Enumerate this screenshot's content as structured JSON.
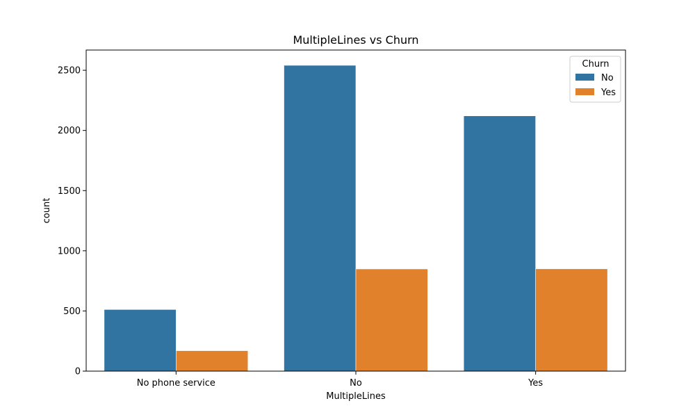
{
  "chart_data": {
    "type": "bar",
    "title": "MultipleLines vs Churn",
    "xlabel": "MultipleLines",
    "ylabel": "count",
    "categories": [
      "No phone service",
      "No",
      "Yes"
    ],
    "series": [
      {
        "name": "No",
        "values": [
          512,
          2541,
          2121
        ],
        "color": "#3274a1"
      },
      {
        "name": "Yes",
        "values": [
          170,
          849,
          850
        ],
        "color": "#e1812c"
      }
    ],
    "ylim": [
      0,
      2668
    ],
    "yticks": [
      0,
      500,
      1000,
      1500,
      2000,
      2500
    ],
    "grid": false,
    "legend": {
      "title": "Churn",
      "placement": "top-right"
    }
  }
}
